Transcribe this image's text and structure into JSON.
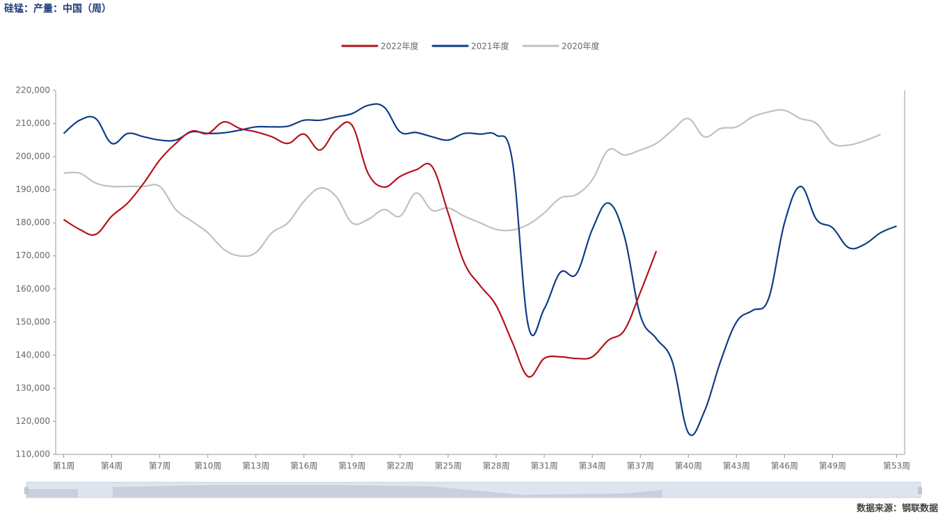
{
  "chart_data": {
    "type": "line",
    "title": "硅锰：产量：中国（周）",
    "source": "数据来源：钢联数据",
    "categories": [
      "第1周",
      "第2周",
      "第3周",
      "第4周",
      "第5周",
      "第6周",
      "第7周",
      "第8周",
      "第9周",
      "第10周",
      "第11周",
      "第12周",
      "第13周",
      "第14周",
      "第15周",
      "第16周",
      "第17周",
      "第18周",
      "第19周",
      "第20周",
      "第21周",
      "第22周",
      "第23周",
      "第24周",
      "第25周",
      "第26周",
      "第27周",
      "第28周",
      "第29周",
      "第30周",
      "第31周",
      "第32周",
      "第33周",
      "第34周",
      "第35周",
      "第36周",
      "第37周",
      "第38周",
      "第39周",
      "第40周",
      "第41周",
      "第42周",
      "第43周",
      "第44周",
      "第45周",
      "第46周",
      "第47周",
      "第48周",
      "第49周",
      "第50周",
      "第51周",
      "第52周",
      "第53周"
    ],
    "series": [
      {
        "name": "2022年度",
        "color": "#b5121b",
        "values": [
          181000,
          178000,
          176500,
          182000,
          186000,
          192000,
          199000,
          204000,
          207700,
          207000,
          210500,
          208500,
          207500,
          206000,
          204000,
          206800,
          202000,
          208000,
          209500,
          195000,
          190800,
          194000,
          196000,
          197000,
          183000,
          168000,
          161000,
          155000,
          144000,
          133500,
          139000,
          139500,
          139000,
          139500,
          144500,
          147500,
          159000,
          171500,
          null,
          null,
          null,
          null,
          null,
          null,
          null,
          null,
          null,
          null,
          null,
          null,
          null,
          null,
          null
        ]
      },
      {
        "name": "2021年度",
        "color": "#0e3b87",
        "values": [
          207000,
          211000,
          211500,
          204000,
          207000,
          206000,
          205000,
          205000,
          207500,
          207000,
          207200,
          208000,
          209000,
          209000,
          209200,
          211000,
          211000,
          212000,
          213000,
          215500,
          215000,
          207500,
          207300,
          206000,
          205000,
          207000,
          206800,
          206500,
          199000,
          149000,
          154000,
          165000,
          164500,
          178000,
          186000,
          176000,
          152000,
          145000,
          138000,
          116500,
          123000,
          138000,
          150000,
          153500,
          157000,
          180000,
          191000,
          181000,
          178500,
          172500,
          173500,
          177000,
          179000
        ]
      },
      {
        "name": "2020年度",
        "color": "#c0c0c0",
        "values": [
          195000,
          195000,
          192000,
          191000,
          191000,
          191000,
          191000,
          184000,
          180500,
          177000,
          172000,
          170000,
          171000,
          177000,
          180000,
          186500,
          190500,
          188000,
          180000,
          181000,
          184000,
          182000,
          189000,
          183800,
          184500,
          182000,
          180000,
          178000,
          177800,
          179500,
          183000,
          187500,
          188500,
          193000,
          202000,
          200500,
          202000,
          204000,
          208000,
          211500,
          206000,
          208500,
          209000,
          212000,
          213500,
          214000,
          211500,
          210000,
          204000,
          203500,
          204800,
          206700,
          null
        ]
      }
    ],
    "ylim": [
      110000,
      220000
    ],
    "yticks": [
      {
        "value": 110000,
        "label": "110,000"
      },
      {
        "value": 120000,
        "label": "120,000"
      },
      {
        "value": 130000,
        "label": "130,000"
      },
      {
        "value": 140000,
        "label": "140,000"
      },
      {
        "value": 150000,
        "label": "150,000"
      },
      {
        "value": 160000,
        "label": "160,000"
      },
      {
        "value": 170000,
        "label": "170,000"
      },
      {
        "value": 180000,
        "label": "180,000"
      },
      {
        "value": 190000,
        "label": "190,000"
      },
      {
        "value": 200000,
        "label": "200,000"
      },
      {
        "value": 210000,
        "label": "210,000"
      },
      {
        "value": 220000,
        "label": "220,000"
      }
    ],
    "legend": "top",
    "grid": false,
    "smooth": true
  }
}
